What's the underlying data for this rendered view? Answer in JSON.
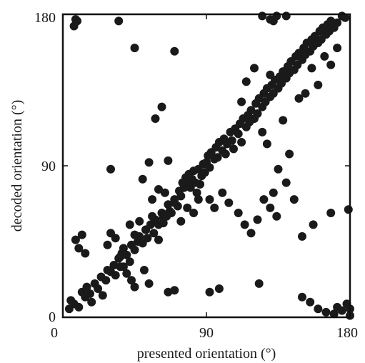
{
  "chart_data": {
    "type": "scatter",
    "title": "",
    "xlabel": "presented orientation (°)",
    "ylabel": "decoded orientation (°)",
    "xlim": [
      0,
      180
    ],
    "ylim": [
      0,
      180
    ],
    "x_ticks": [
      "0",
      "90",
      "180"
    ],
    "y_ticks": [
      "0",
      "90",
      "180"
    ],
    "grid": false,
    "legend": "none",
    "marker_color": "#1a1a1a",
    "points": [
      [
        8,
        177
      ],
      [
        7,
        173
      ],
      [
        9,
        176
      ],
      [
        35,
        176
      ],
      [
        125,
        179
      ],
      [
        130,
        177
      ],
      [
        132,
        176
      ],
      [
        134,
        179
      ],
      [
        140,
        179
      ],
      [
        175,
        179
      ],
      [
        177,
        178
      ],
      [
        5,
        10
      ],
      [
        4,
        5
      ],
      [
        7,
        8
      ],
      [
        10,
        6
      ],
      [
        12,
        15
      ],
      [
        14,
        12
      ],
      [
        15,
        18
      ],
      [
        17,
        14
      ],
      [
        18,
        9
      ],
      [
        20,
        20
      ],
      [
        22,
        17
      ],
      [
        24,
        24
      ],
      [
        25,
        13
      ],
      [
        27,
        22
      ],
      [
        28,
        28
      ],
      [
        30,
        27
      ],
      [
        32,
        31
      ],
      [
        33,
        25
      ],
      [
        35,
        35
      ],
      [
        36,
        30
      ],
      [
        37,
        38
      ],
      [
        40,
        37
      ],
      [
        42,
        33
      ],
      [
        43,
        43
      ],
      [
        45,
        40
      ],
      [
        47,
        45
      ],
      [
        48,
        48
      ],
      [
        50,
        44
      ],
      [
        52,
        52
      ],
      [
        53,
        47
      ],
      [
        55,
        55
      ],
      [
        57,
        50
      ],
      [
        58,
        58
      ],
      [
        60,
        55
      ],
      [
        62,
        62
      ],
      [
        63,
        59
      ],
      [
        65,
        60
      ],
      [
        66,
        67
      ],
      [
        68,
        62
      ],
      [
        70,
        70
      ],
      [
        72,
        66
      ],
      [
        73,
        75
      ],
      [
        74,
        72
      ],
      [
        75,
        80
      ],
      [
        76,
        77
      ],
      [
        77,
        83
      ],
      [
        78,
        79
      ],
      [
        79,
        85
      ],
      [
        80,
        77
      ],
      [
        81,
        82
      ],
      [
        82,
        87
      ],
      [
        83,
        80
      ],
      [
        84,
        74
      ],
      [
        85,
        88
      ],
      [
        86,
        79
      ],
      [
        87,
        84
      ],
      [
        88,
        91
      ],
      [
        89,
        86
      ],
      [
        90,
        92
      ],
      [
        91,
        96
      ],
      [
        92,
        89
      ],
      [
        93,
        98
      ],
      [
        95,
        94
      ],
      [
        96,
        101
      ],
      [
        97,
        95
      ],
      [
        98,
        104
      ],
      [
        100,
        99
      ],
      [
        101,
        106
      ],
      [
        102,
        97
      ],
      [
        103,
        103
      ],
      [
        105,
        110
      ],
      [
        106,
        105
      ],
      [
        107,
        100
      ],
      [
        108,
        112
      ],
      [
        110,
        109
      ],
      [
        111,
        115
      ],
      [
        112,
        104
      ],
      [
        113,
        118
      ],
      [
        115,
        113
      ],
      [
        116,
        120
      ],
      [
        117,
        116
      ],
      [
        118,
        123
      ],
      [
        120,
        118
      ],
      [
        121,
        127
      ],
      [
        122,
        121
      ],
      [
        123,
        130
      ],
      [
        125,
        125
      ],
      [
        126,
        133
      ],
      [
        127,
        128
      ],
      [
        128,
        136
      ],
      [
        130,
        131
      ],
      [
        131,
        138
      ],
      [
        132,
        133
      ],
      [
        133,
        141
      ],
      [
        135,
        136
      ],
      [
        136,
        143
      ],
      [
        137,
        139
      ],
      [
        138,
        146
      ],
      [
        140,
        142
      ],
      [
        141,
        149
      ],
      [
        142,
        145
      ],
      [
        143,
        152
      ],
      [
        145,
        147
      ],
      [
        146,
        155
      ],
      [
        147,
        150
      ],
      [
        148,
        157
      ],
      [
        150,
        153
      ],
      [
        151,
        160
      ],
      [
        152,
        156
      ],
      [
        153,
        163
      ],
      [
        155,
        158
      ],
      [
        156,
        165
      ],
      [
        157,
        161
      ],
      [
        158,
        167
      ],
      [
        160,
        163
      ],
      [
        161,
        170
      ],
      [
        162,
        165
      ],
      [
        163,
        172
      ],
      [
        165,
        168
      ],
      [
        166,
        174
      ],
      [
        167,
        170
      ],
      [
        168,
        176
      ],
      [
        170,
        172
      ],
      [
        172,
        175
      ],
      [
        8,
        46
      ],
      [
        10,
        41
      ],
      [
        12,
        49
      ],
      [
        14,
        38
      ],
      [
        28,
        43
      ],
      [
        30,
        50
      ],
      [
        33,
        47
      ],
      [
        38,
        41
      ],
      [
        42,
        55
      ],
      [
        45,
        49
      ],
      [
        48,
        57
      ],
      [
        52,
        52
      ],
      [
        56,
        60
      ],
      [
        60,
        46
      ],
      [
        63,
        56
      ],
      [
        67,
        63
      ],
      [
        70,
        68
      ],
      [
        74,
        57
      ],
      [
        78,
        65
      ],
      [
        82,
        62
      ],
      [
        85,
        70
      ],
      [
        36,
        36
      ],
      [
        38,
        30
      ],
      [
        40,
        26
      ],
      [
        43,
        22
      ],
      [
        45,
        18
      ],
      [
        51,
        28
      ],
      [
        54,
        20
      ],
      [
        50,
        82
      ],
      [
        56,
        70
      ],
      [
        60,
        76
      ],
      [
        64,
        74
      ],
      [
        66,
        93
      ],
      [
        58,
        118
      ],
      [
        62,
        125
      ],
      [
        54,
        92
      ],
      [
        30,
        88
      ],
      [
        45,
        160
      ],
      [
        70,
        158
      ],
      [
        92,
        70
      ],
      [
        95,
        65
      ],
      [
        100,
        74
      ],
      [
        104,
        68
      ],
      [
        110,
        62
      ],
      [
        114,
        55
      ],
      [
        118,
        50
      ],
      [
        122,
        58
      ],
      [
        126,
        70
      ],
      [
        130,
        65
      ],
      [
        134,
        60
      ],
      [
        140,
        80
      ],
      [
        145,
        70
      ],
      [
        123,
        20
      ],
      [
        92,
        15
      ],
      [
        98,
        17
      ],
      [
        66,
        15
      ],
      [
        70,
        16
      ],
      [
        150,
        12
      ],
      [
        155,
        9
      ],
      [
        160,
        5
      ],
      [
        165,
        3
      ],
      [
        170,
        2
      ],
      [
        172,
        6
      ],
      [
        175,
        4
      ],
      [
        178,
        8
      ],
      [
        180,
        5
      ],
      [
        180,
        1
      ],
      [
        168,
        62
      ],
      [
        179,
        64
      ],
      [
        157,
        55
      ],
      [
        150,
        48
      ],
      [
        135,
        88
      ],
      [
        132,
        74
      ],
      [
        108,
        112
      ],
      [
        112,
        128
      ],
      [
        115,
        140
      ],
      [
        120,
        148
      ],
      [
        125,
        110
      ],
      [
        128,
        103
      ],
      [
        130,
        144
      ],
      [
        138,
        117
      ],
      [
        142,
        97
      ],
      [
        148,
        130
      ],
      [
        152,
        133
      ],
      [
        156,
        148
      ],
      [
        160,
        138
      ],
      [
        164,
        155
      ],
      [
        168,
        150
      ],
      [
        172,
        160
      ]
    ]
  }
}
